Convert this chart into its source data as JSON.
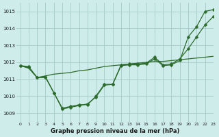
{
  "background_color": "#ceecea",
  "grid_color": "#aacfcc",
  "line_color": "#2d6b2d",
  "title": "Graphe pression niveau de la mer (hPa)",
  "xlim": [
    -0.5,
    23
  ],
  "ylim": [
    1008.5,
    1015.5
  ],
  "yticks": [
    1009,
    1010,
    1011,
    1012,
    1013,
    1014,
    1015
  ],
  "xticks": [
    0,
    1,
    2,
    3,
    4,
    5,
    6,
    7,
    8,
    9,
    10,
    11,
    12,
    13,
    14,
    15,
    16,
    17,
    18,
    19,
    20,
    21,
    22,
    23
  ],
  "series1_x": [
    0,
    1,
    2,
    3,
    4,
    5,
    6,
    7,
    8,
    9,
    10,
    11,
    12,
    13,
    14,
    15,
    16,
    17,
    18,
    19,
    20,
    21,
    22,
    23
  ],
  "series1_y": [
    1011.8,
    1011.75,
    1011.1,
    1011.15,
    1010.2,
    1009.3,
    1009.4,
    1009.5,
    1009.5,
    1010.0,
    1010.7,
    1010.7,
    1011.85,
    1011.9,
    1011.9,
    1011.95,
    1012.3,
    1011.85,
    1011.9,
    1012.2,
    1012.8,
    1013.5,
    1014.2,
    1014.7
  ],
  "series2_x": [
    0,
    1,
    2,
    3,
    4,
    5,
    6,
    7,
    8,
    9,
    10,
    11,
    12,
    13,
    14,
    15,
    16,
    17,
    18,
    19,
    20,
    21,
    22,
    23
  ],
  "series2_y": [
    1011.8,
    1011.65,
    1011.1,
    1011.2,
    1011.3,
    1011.35,
    1011.4,
    1011.5,
    1011.55,
    1011.65,
    1011.75,
    1011.8,
    1011.85,
    1011.9,
    1011.95,
    1012.0,
    1012.05,
    1012.05,
    1012.1,
    1012.15,
    1012.2,
    1012.25,
    1012.3,
    1012.35
  ],
  "series3_x": [
    0,
    1,
    2,
    3,
    4,
    5,
    6,
    7,
    8,
    9,
    10,
    11,
    12,
    13,
    14,
    15,
    16,
    17,
    18,
    19,
    20,
    21,
    22,
    23
  ],
  "series3_y": [
    1011.8,
    1011.7,
    1011.1,
    1011.1,
    1010.2,
    1009.25,
    1009.35,
    1009.45,
    1009.55,
    1009.95,
    1010.65,
    1010.7,
    1011.8,
    1011.85,
    1011.85,
    1011.9,
    1012.2,
    1011.8,
    1011.85,
    1012.1,
    1013.5,
    1014.1,
    1015.0,
    1015.1
  ]
}
